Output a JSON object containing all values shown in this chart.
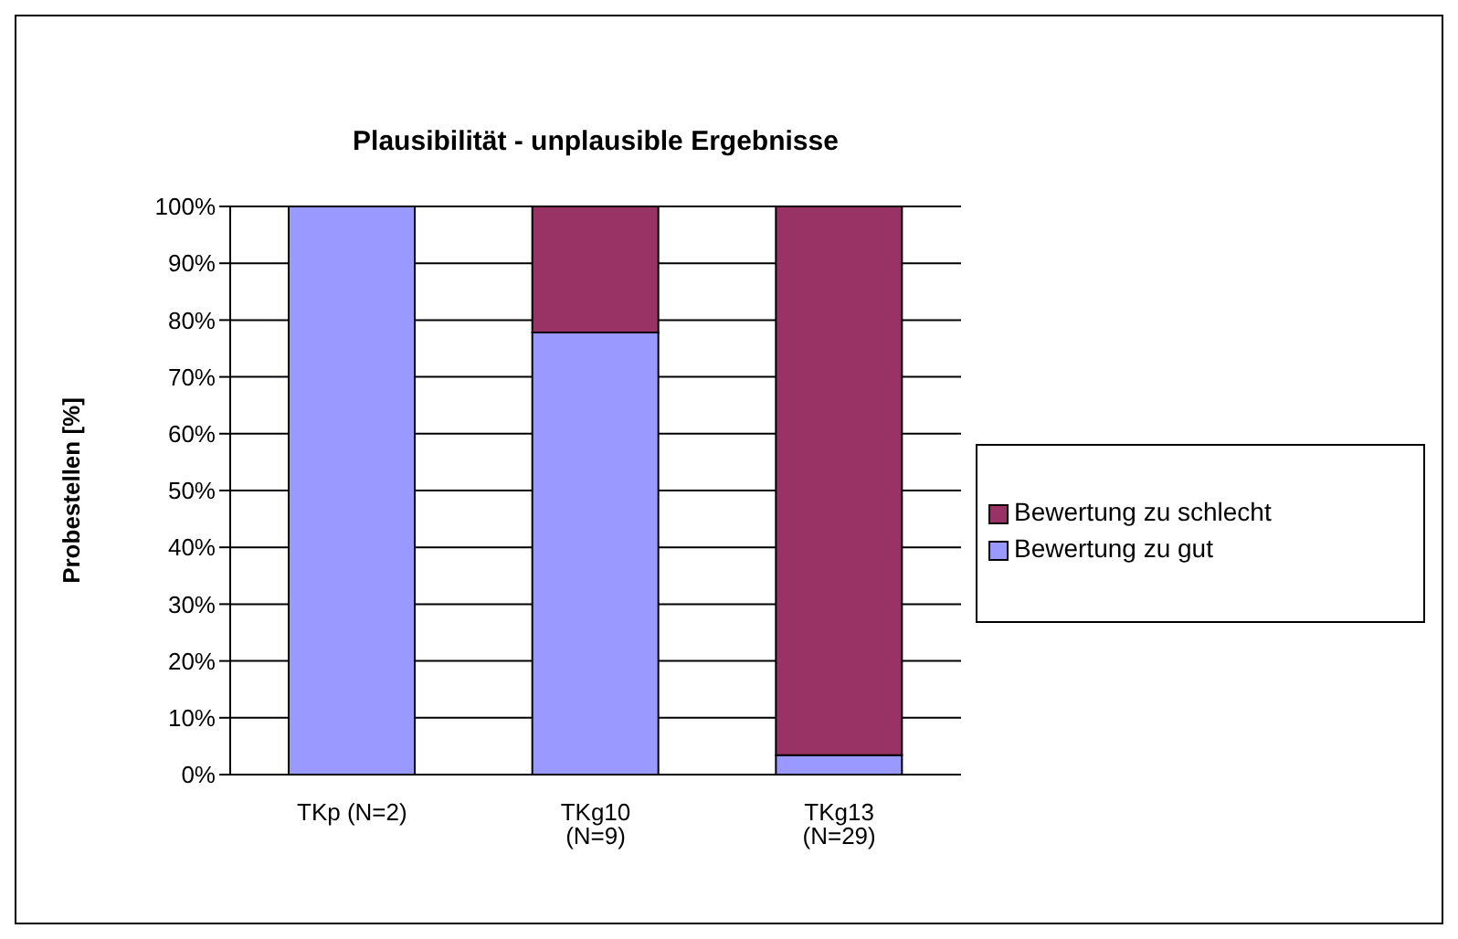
{
  "chart_data": {
    "type": "bar",
    "title": "Plausibilität - unplausible Ergebnisse",
    "ylabel": "Probestellen [%]",
    "categories": [
      "TKp (N=2)",
      "TKg10 (N=9)",
      "TKg13 (N=29)"
    ],
    "stacked": true,
    "series": [
      {
        "name": "Bewertung zu gut",
        "color": "#9999ff",
        "values": [
          100,
          77.8,
          3.4
        ]
      },
      {
        "name": "Bewertung zu schlecht",
        "color": "#993366",
        "values": [
          0,
          22.2,
          96.6
        ]
      }
    ],
    "ylim": [
      0,
      100
    ],
    "yticks": [
      {
        "value": 0,
        "label": "0%"
      },
      {
        "value": 10,
        "label": "10%"
      },
      {
        "value": 20,
        "label": "20%"
      },
      {
        "value": 30,
        "label": "30%"
      },
      {
        "value": 40,
        "label": "40%"
      },
      {
        "value": 50,
        "label": "50%"
      },
      {
        "value": 60,
        "label": "60%"
      },
      {
        "value": 70,
        "label": "70%"
      },
      {
        "value": 80,
        "label": "80%"
      },
      {
        "value": 90,
        "label": "90%"
      },
      {
        "value": 100,
        "label": "100%"
      }
    ],
    "grid": "y",
    "legend": "right"
  }
}
